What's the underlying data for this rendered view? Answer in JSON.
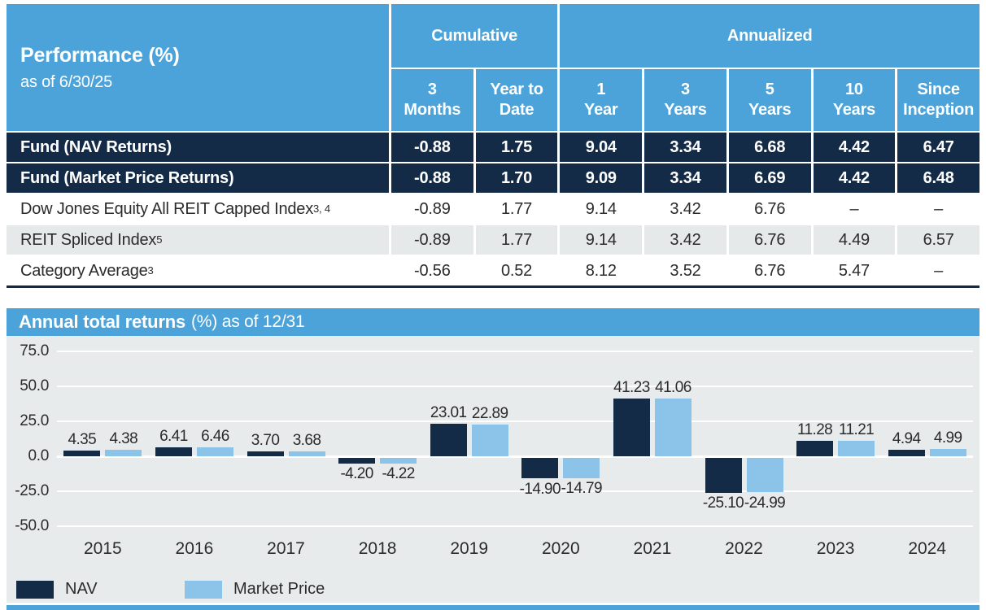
{
  "perf_table": {
    "title": "Performance (%)",
    "subtitle": "as of 6/30/25",
    "group_headers": {
      "cumulative": "Cumulative",
      "annualized": "Annualized"
    },
    "columns": [
      "3\nMonths",
      "Year to\nDate",
      "1\nYear",
      "3\nYears",
      "5\nYears",
      "10\nYears",
      "Since\nInception"
    ],
    "rows": [
      {
        "label": "Fund (NAV Returns)",
        "sup": "",
        "style": "dark",
        "values": [
          "-0.88",
          "1.75",
          "9.04",
          "3.34",
          "6.68",
          "4.42",
          "6.47"
        ]
      },
      {
        "label": "Fund (Market Price Returns)",
        "sup": "",
        "style": "dark",
        "values": [
          "-0.88",
          "1.70",
          "9.09",
          "3.34",
          "6.69",
          "4.42",
          "6.48"
        ]
      },
      {
        "label": "Dow Jones Equity All REIT Capped Index",
        "sup": "3, 4",
        "style": "light",
        "values": [
          "-0.89",
          "1.77",
          "9.14",
          "3.42",
          "6.76",
          "–",
          "–"
        ]
      },
      {
        "label": "REIT Spliced Index",
        "sup": "5",
        "style": "alt",
        "values": [
          "-0.89",
          "1.77",
          "9.14",
          "3.42",
          "6.76",
          "4.49",
          "6.57"
        ]
      },
      {
        "label": "Category Average",
        "sup": "3",
        "style": "light",
        "values": [
          "-0.56",
          "0.52",
          "8.12",
          "3.52",
          "6.76",
          "5.47",
          "–"
        ]
      }
    ]
  },
  "chart": {
    "title_bold": "Annual total returns",
    "title_rest": "(%) as of 12/31"
  },
  "chart_data": {
    "type": "bar",
    "title": "Annual total returns (%) as of 12/31",
    "categories": [
      "2015",
      "2016",
      "2017",
      "2018",
      "2019",
      "2020",
      "2021",
      "2022",
      "2023",
      "2024"
    ],
    "series": [
      {
        "name": "NAV",
        "color": "#132B47",
        "values": [
          4.35,
          6.41,
          3.7,
          -4.2,
          23.01,
          -14.9,
          41.23,
          -25.1,
          11.28,
          4.94
        ]
      },
      {
        "name": "Market Price",
        "color": "#8CC4E9",
        "values": [
          4.38,
          6.46,
          3.68,
          -4.22,
          22.89,
          -14.79,
          41.06,
          -24.99,
          11.21,
          4.99
        ]
      }
    ],
    "xlabel": "",
    "ylabel": "",
    "ylim": [
      -50,
      75
    ],
    "yticks": [
      75.0,
      50.0,
      25.0,
      0.0,
      -25.0,
      -50.0
    ],
    "grid": true,
    "legend_position": "bottom"
  },
  "colors": {
    "header_blue": "#4BA3DA",
    "navy": "#132B47",
    "light_blue": "#8CC4E9",
    "chart_bg": "#E8EBEC",
    "alt_row": "#E5E9EA",
    "text": "#2B2B2B"
  }
}
